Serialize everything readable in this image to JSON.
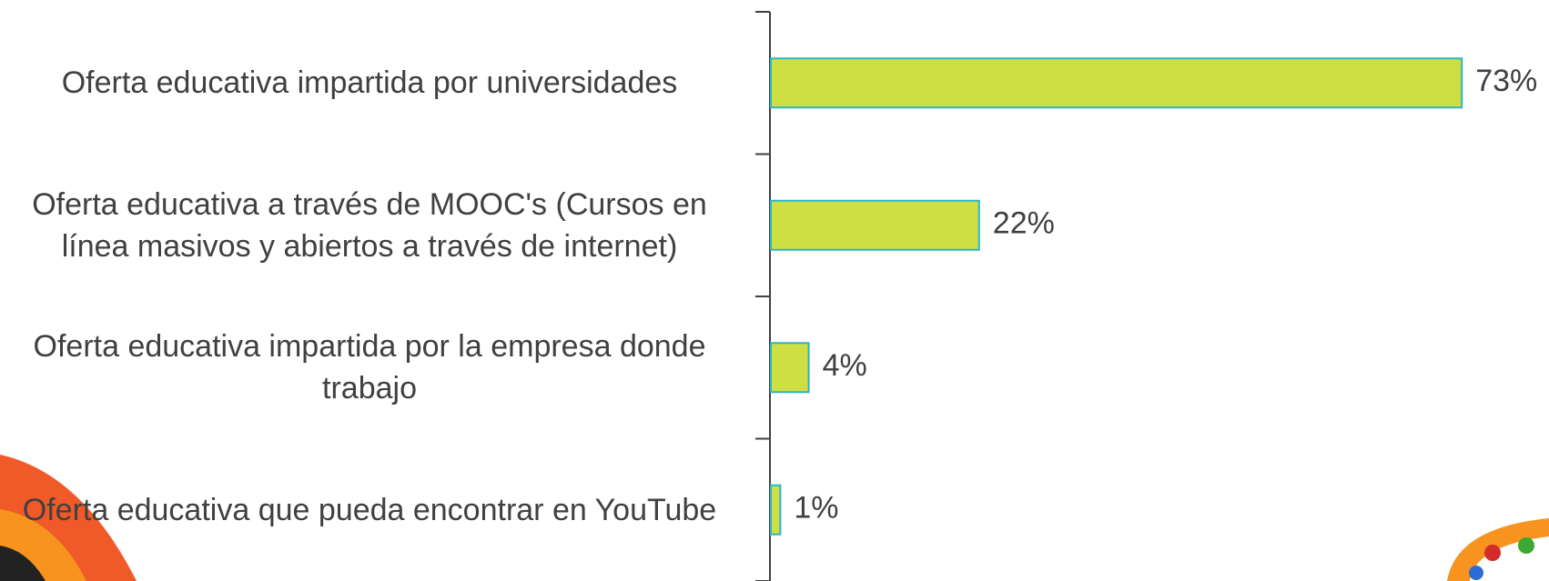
{
  "chart_data": {
    "type": "bar",
    "orientation": "horizontal",
    "categories": [
      "Oferta educativa impartida por universidades",
      "Oferta educativa a través de MOOC's (Cursos en línea masivos y abiertos a través de internet)",
      "Oferta educativa impartida por la empresa donde trabajo",
      "Oferta educativa que pueda encontrar en YouTube"
    ],
    "values": [
      73,
      22,
      4,
      1
    ],
    "value_labels": [
      "73%",
      "22%",
      "4%",
      "1%"
    ],
    "color": "#cedf43",
    "edge_color": "#2bb5c8"
  }
}
